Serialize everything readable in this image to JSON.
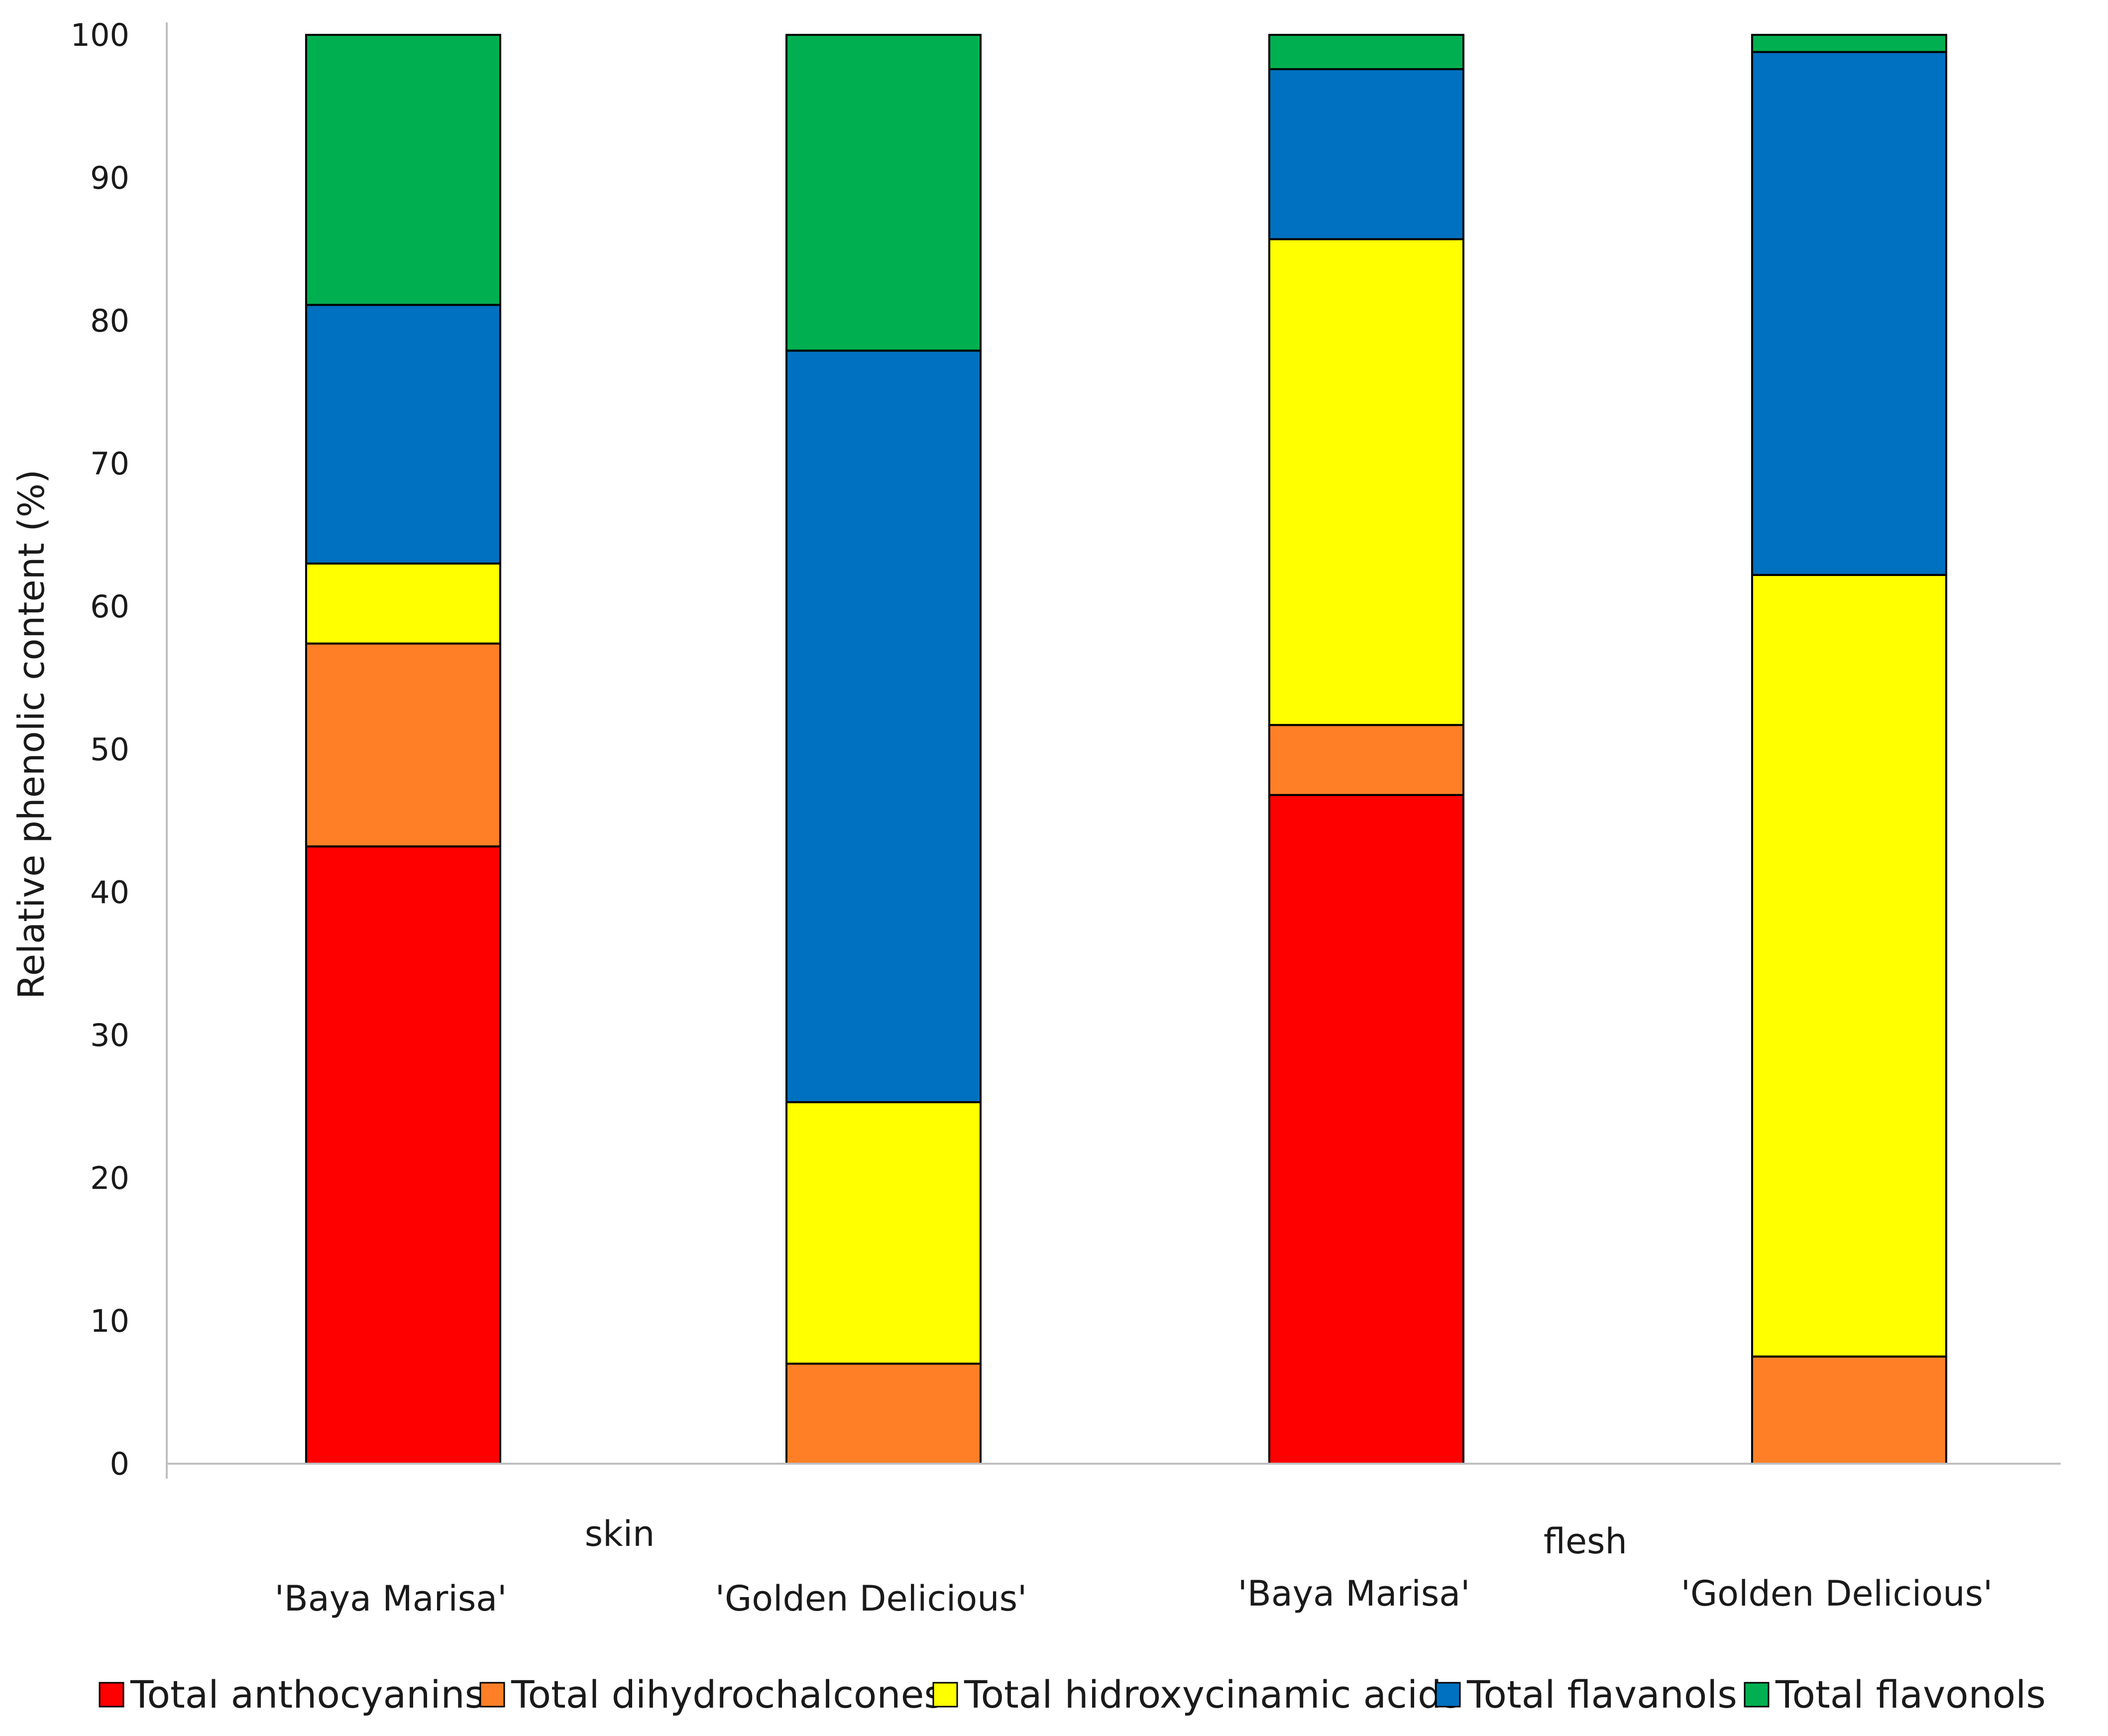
{
  "chart_data": {
    "type": "bar",
    "stacked": true,
    "title": "",
    "xlabel": "",
    "ylabel": "Relative phenolic content (%)",
    "ylim": [
      0,
      100
    ],
    "yticks": [
      0,
      10,
      20,
      30,
      40,
      50,
      60,
      70,
      80,
      90,
      100
    ],
    "grid": false,
    "legend_position": "bottom",
    "groups": [
      {
        "label": "skin",
        "categories": [
          0,
          1
        ]
      },
      {
        "label": "flesh",
        "categories": [
          2,
          3
        ]
      }
    ],
    "categories": [
      "'Baya Marisa'",
      "'Golden Delicious'",
      "'Baya Marisa'",
      "'Golden Delicious'"
    ],
    "series": [
      {
        "name": "Total anthocyanins",
        "color": "#ff0000",
        "values": [
          43.2,
          0,
          46.8,
          0
        ]
      },
      {
        "name": "Total dihydrochalcones",
        "color": "#ff7f27",
        "values": [
          14.2,
          7.0,
          4.9,
          7.5
        ]
      },
      {
        "name": "Total hidroxycinamic acids",
        "color": "#ffff00",
        "values": [
          5.6,
          18.3,
          34.0,
          54.7
        ]
      },
      {
        "name": "Total flavanols",
        "color": "#0070c0",
        "values": [
          18.1,
          52.6,
          11.9,
          36.6
        ]
      },
      {
        "name": "Total flavonols",
        "color": "#00b050",
        "values": [
          18.9,
          22.1,
          2.4,
          1.2
        ]
      }
    ]
  }
}
